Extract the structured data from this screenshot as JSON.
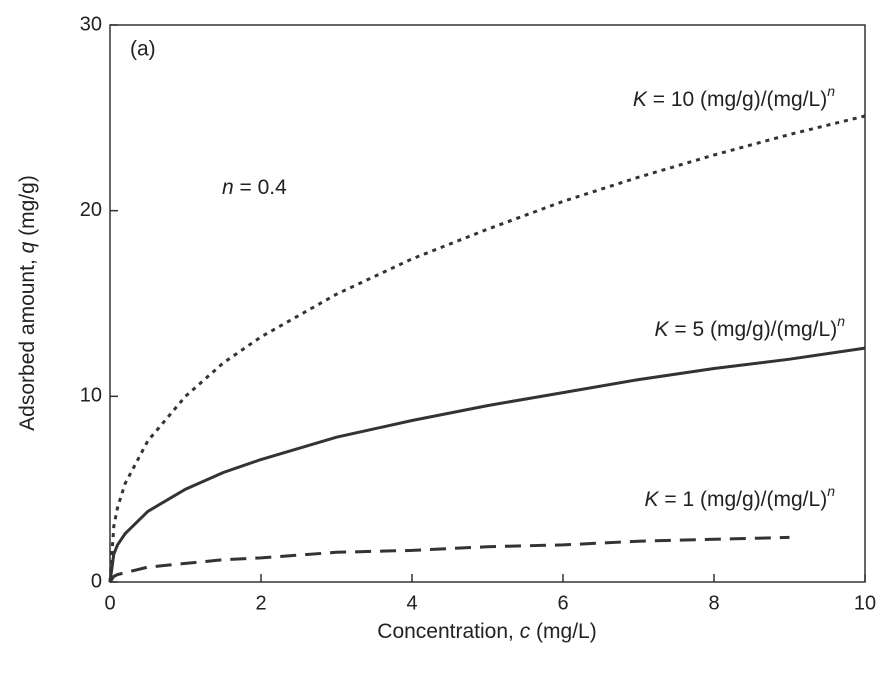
{
  "chart_data": {
    "type": "line",
    "annotations": [
      "(a)",
      "n = 0.4"
    ],
    "xlabel": "Concentration, c (mg/L)",
    "ylabel": "Adsorbed amount, q (mg/g)",
    "x": [
      0,
      0.05,
      0.1,
      0.2,
      0.5,
      1,
      1.5,
      2,
      3,
      4,
      5,
      6,
      7,
      8,
      9,
      10
    ],
    "series": [
      {
        "name": "K = 10 (mg/g)/(mg/L)n",
        "color": "#333333",
        "line_style": "dotted",
        "values": [
          0,
          3.0,
          4.0,
          5.3,
          7.6,
          10,
          11.8,
          13.2,
          15.5,
          17.4,
          19.0,
          20.5,
          21.8,
          23.0,
          24.1,
          25.1
        ]
      },
      {
        "name": "K = 5 (mg/g)/(mg/L)n",
        "color": "#333333",
        "line_style": "solid",
        "values": [
          0,
          1.5,
          2.0,
          2.6,
          3.8,
          5,
          5.9,
          6.6,
          7.8,
          8.7,
          9.5,
          10.2,
          10.9,
          11.5,
          12.0,
          12.6
        ]
      },
      {
        "name": "K = 1 (mg/g)/(mg/L)n",
        "color": "#333333",
        "line_style": "dashed",
        "values": [
          0,
          0.3,
          0.4,
          0.5,
          0.8,
          1,
          1.2,
          1.3,
          1.6,
          1.7,
          1.9,
          2.0,
          2.2,
          2.3,
          2.4,
          null
        ]
      }
    ],
    "xlim": [
      0,
      10
    ],
    "xticks": [
      0,
      2,
      4,
      6,
      8,
      10
    ],
    "ylim": [
      0,
      30
    ],
    "yticks": [
      0,
      10,
      20,
      30
    ]
  }
}
